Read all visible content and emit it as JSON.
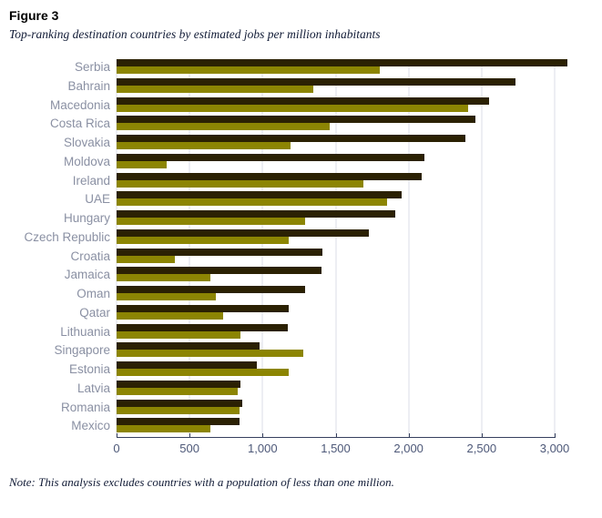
{
  "figure": {
    "label": "Figure 3",
    "subtitle": "Top-ranking destination countries by estimated jobs per million inhabitants",
    "note": "Note: This analysis excludes countries with a population of less than one million."
  },
  "colors": {
    "dark_bar": "#2B2103",
    "olive_bar": "#8C8503",
    "axis_line": "#36405E",
    "tick_label": "#4D5878",
    "category_label": "#8A90A3",
    "gridline": "#EDEEF3",
    "serif_text": "#111B36"
  },
  "chart_data": {
    "type": "bar",
    "orientation": "horizontal",
    "title": "Top-ranking destination countries by estimated jobs per million inhabitants",
    "xlabel": "",
    "ylabel": "",
    "xlim": [
      0,
      3000
    ],
    "x_ticks": [
      0,
      500,
      1000,
      1500,
      2000,
      2500,
      3000
    ],
    "x_tick_labels": [
      "0",
      "500",
      "1,000",
      "1,500",
      "2,000",
      "2,500",
      "3,000"
    ],
    "grid": "vertical",
    "legend": "none",
    "categories": [
      "Serbia",
      "Bahrain",
      "Macedonia",
      "Costa Rica",
      "Slovakia",
      "Moldova",
      "Ireland",
      "UAE",
      "Hungary",
      "Czech Republic",
      "Croatia",
      "Jamaica",
      "Oman",
      "Qatar",
      "Lithuania",
      "Singapore",
      "Estonia",
      "Latvia",
      "Romania",
      "Mexico"
    ],
    "series": [
      {
        "name": "dark",
        "color_key": "dark_bar",
        "values": [
          3090,
          2730,
          2550,
          2460,
          2390,
          2110,
          2090,
          1950,
          1910,
          1730,
          1410,
          1400,
          1290,
          1180,
          1170,
          980,
          960,
          850,
          860,
          840
        ]
      },
      {
        "name": "olive",
        "color_key": "olive_bar",
        "values": [
          1800,
          1350,
          2410,
          1460,
          1190,
          340,
          1690,
          1850,
          1290,
          1180,
          400,
          640,
          680,
          730,
          850,
          1280,
          1180,
          830,
          840,
          640
        ]
      }
    ]
  }
}
